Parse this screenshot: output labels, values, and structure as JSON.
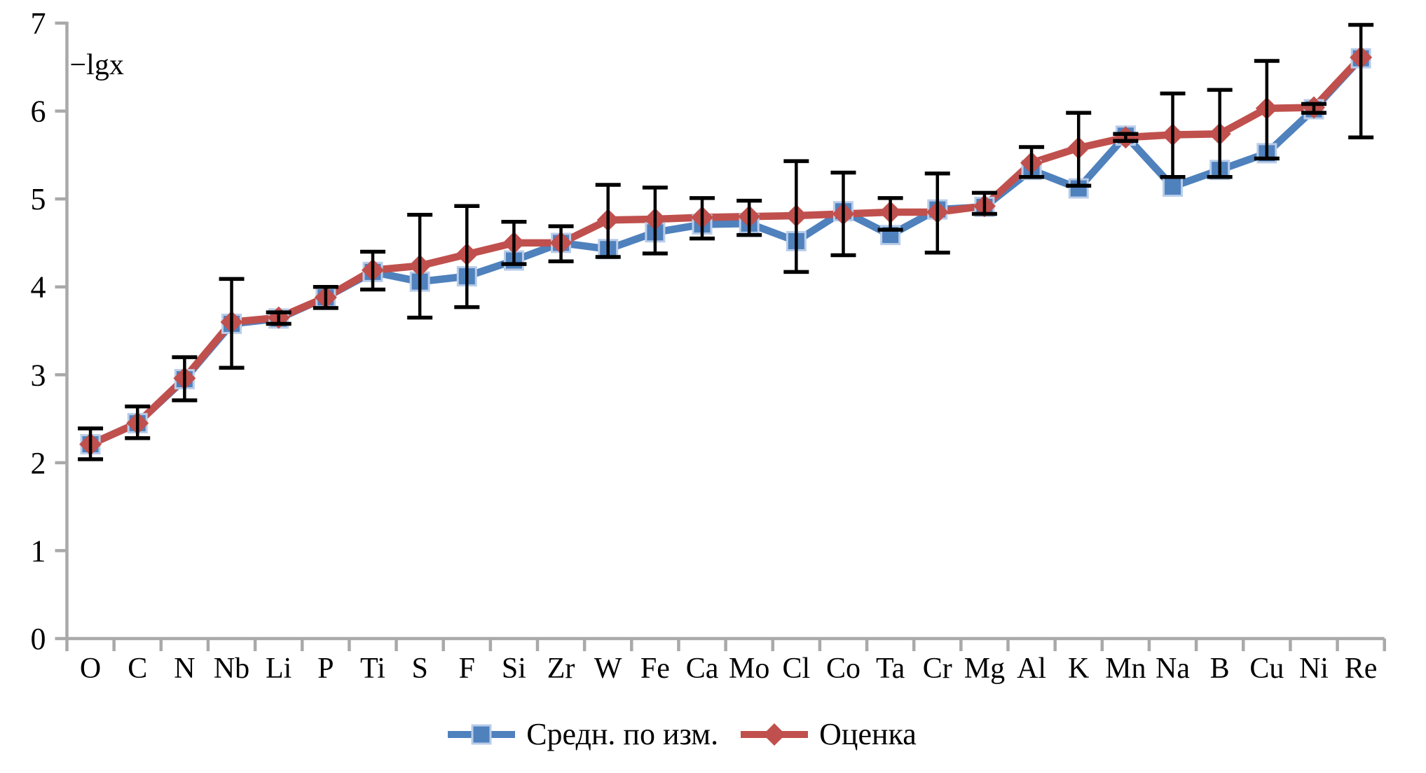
{
  "figure": {
    "background": "#ffffff"
  },
  "chart_data": {
    "type": "line",
    "title": "",
    "ylabel": "−lgx",
    "xlabel": "",
    "grid": false,
    "legend_position": "bottom",
    "ylim": [
      0,
      7
    ],
    "yticks": [
      0,
      1,
      2,
      3,
      4,
      5,
      6,
      7
    ],
    "axis_color": "#a9a9a9",
    "error_bar_color": "#000000",
    "categories": [
      "O",
      "C",
      "N",
      "Nb",
      "Li",
      "P",
      "Ti",
      "S",
      "F",
      "Si",
      "Zr",
      "W",
      "Fe",
      "Ca",
      "Mo",
      "Cl",
      "Co",
      "Ta",
      "Cr",
      "Mg",
      "Al",
      "K",
      "Mn",
      "Na",
      "B",
      "Cu",
      "Ni",
      "Re"
    ],
    "series": [
      {
        "name": "Средн. по изм.",
        "marker": "square",
        "color": "#4f81bd",
        "marker_outline": "#b9cde9",
        "values": [
          2.21,
          2.45,
          2.95,
          3.58,
          3.64,
          3.88,
          4.17,
          4.06,
          4.12,
          4.3,
          4.5,
          4.43,
          4.62,
          4.71,
          4.72,
          4.52,
          4.86,
          4.59,
          4.88,
          4.91,
          5.33,
          5.12,
          5.72,
          5.14,
          5.33,
          5.52,
          6.02,
          6.6
        ]
      },
      {
        "name": "Оценка",
        "marker": "diamond",
        "color": "#c0504d",
        "values": [
          2.21,
          2.45,
          2.96,
          3.6,
          3.65,
          3.88,
          4.19,
          4.24,
          4.37,
          4.5,
          4.5,
          4.76,
          4.77,
          4.79,
          4.8,
          4.81,
          4.83,
          4.85,
          4.85,
          4.92,
          5.41,
          5.58,
          5.7,
          5.73,
          5.74,
          6.03,
          6.04,
          6.61
        ],
        "error_low": [
          2.04,
          2.28,
          2.71,
          3.08,
          3.58,
          3.76,
          3.97,
          3.65,
          3.77,
          4.26,
          4.29,
          4.34,
          4.38,
          4.55,
          4.59,
          4.17,
          4.36,
          4.65,
          4.39,
          4.83,
          5.25,
          5.15,
          5.66,
          5.25,
          5.25,
          5.46,
          5.98,
          5.7
        ],
        "error_high": [
          2.39,
          2.64,
          3.2,
          4.09,
          3.71,
          4.0,
          4.4,
          4.82,
          4.92,
          4.74,
          4.69,
          5.16,
          5.13,
          5.01,
          4.98,
          5.43,
          5.3,
          5.01,
          5.29,
          5.07,
          5.59,
          5.98,
          5.74,
          6.2,
          6.24,
          6.57,
          6.08,
          6.98
        ]
      }
    ]
  }
}
